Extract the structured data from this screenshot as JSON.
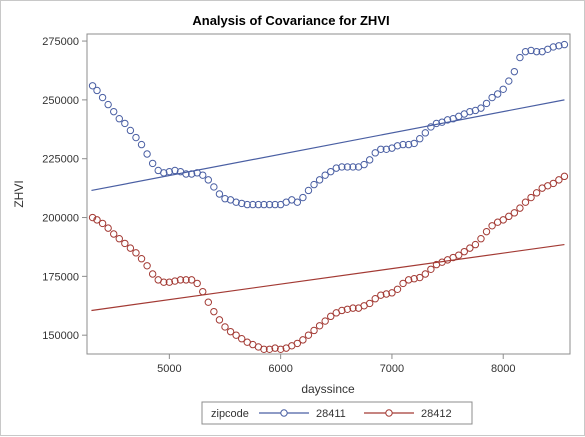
{
  "chart_data": {
    "type": "scatter",
    "title": "Analysis of Covariance for ZHVI",
    "xlabel": "dayssince",
    "ylabel": "ZHVI",
    "xlim": [
      4260,
      8600
    ],
    "ylim": [
      142000,
      278000
    ],
    "xticks": [
      5000,
      6000,
      7000,
      8000
    ],
    "yticks": [
      150000,
      175000,
      200000,
      225000,
      250000,
      275000
    ],
    "grid": false,
    "legend": {
      "title": "zipcode",
      "position": "bottom"
    },
    "series": [
      {
        "name": "28411",
        "color": "#4a5fa3",
        "fit": {
          "x": [
            4300,
            8550
          ],
          "y": [
            211500,
            250000
          ]
        },
        "points": [
          [
            4310,
            256000
          ],
          [
            4350,
            254000
          ],
          [
            4400,
            251000
          ],
          [
            4450,
            248000
          ],
          [
            4500,
            245000
          ],
          [
            4550,
            242000
          ],
          [
            4600,
            240000
          ],
          [
            4650,
            237000
          ],
          [
            4700,
            234000
          ],
          [
            4750,
            231000
          ],
          [
            4800,
            227000
          ],
          [
            4850,
            223000
          ],
          [
            4900,
            220000
          ],
          [
            4950,
            219000
          ],
          [
            5000,
            219500
          ],
          [
            5050,
            220000
          ],
          [
            5100,
            219500
          ],
          [
            5150,
            218500
          ],
          [
            5200,
            218500
          ],
          [
            5250,
            219000
          ],
          [
            5300,
            218000
          ],
          [
            5350,
            216000
          ],
          [
            5400,
            213000
          ],
          [
            5450,
            210000
          ],
          [
            5500,
            208000
          ],
          [
            5550,
            207500
          ],
          [
            5600,
            206500
          ],
          [
            5650,
            206000
          ],
          [
            5700,
            205500
          ],
          [
            5750,
            205500
          ],
          [
            5800,
            205500
          ],
          [
            5850,
            205500
          ],
          [
            5900,
            205500
          ],
          [
            5950,
            205500
          ],
          [
            6000,
            205500
          ],
          [
            6050,
            206500
          ],
          [
            6100,
            207500
          ],
          [
            6150,
            206500
          ],
          [
            6200,
            208500
          ],
          [
            6250,
            211500
          ],
          [
            6300,
            214000
          ],
          [
            6350,
            216000
          ],
          [
            6400,
            218000
          ],
          [
            6450,
            219500
          ],
          [
            6500,
            221000
          ],
          [
            6550,
            221500
          ],
          [
            6600,
            221500
          ],
          [
            6650,
            221500
          ],
          [
            6700,
            221500
          ],
          [
            6750,
            222500
          ],
          [
            6800,
            224500
          ],
          [
            6850,
            227500
          ],
          [
            6900,
            229000
          ],
          [
            6950,
            229000
          ],
          [
            7000,
            229500
          ],
          [
            7050,
            230500
          ],
          [
            7100,
            231000
          ],
          [
            7150,
            231000
          ],
          [
            7200,
            231500
          ],
          [
            7250,
            233500
          ],
          [
            7300,
            236000
          ],
          [
            7350,
            238500
          ],
          [
            7400,
            240000
          ],
          [
            7450,
            240500
          ],
          [
            7500,
            241500
          ],
          [
            7550,
            242000
          ],
          [
            7600,
            243000
          ],
          [
            7650,
            244000
          ],
          [
            7700,
            245000
          ],
          [
            7750,
            245500
          ],
          [
            7800,
            246500
          ],
          [
            7850,
            248500
          ],
          [
            7900,
            251000
          ],
          [
            7950,
            252500
          ],
          [
            8000,
            254500
          ],
          [
            8050,
            258000
          ],
          [
            8100,
            262000
          ],
          [
            8150,
            268000
          ],
          [
            8200,
            270500
          ],
          [
            8250,
            271000
          ],
          [
            8300,
            270500
          ],
          [
            8350,
            270500
          ],
          [
            8400,
            271500
          ],
          [
            8450,
            272500
          ],
          [
            8500,
            273000
          ],
          [
            8550,
            273500
          ]
        ]
      },
      {
        "name": "28412",
        "color": "#a33a34",
        "fit": {
          "x": [
            4300,
            8550
          ],
          "y": [
            160500,
            188500
          ]
        },
        "points": [
          [
            4310,
            200000
          ],
          [
            4350,
            199000
          ],
          [
            4400,
            197500
          ],
          [
            4450,
            195500
          ],
          [
            4500,
            193000
          ],
          [
            4550,
            191000
          ],
          [
            4600,
            189000
          ],
          [
            4650,
            187000
          ],
          [
            4700,
            185000
          ],
          [
            4750,
            182500
          ],
          [
            4800,
            179500
          ],
          [
            4850,
            176000
          ],
          [
            4900,
            173500
          ],
          [
            4950,
            172500
          ],
          [
            5000,
            172500
          ],
          [
            5050,
            173000
          ],
          [
            5100,
            173500
          ],
          [
            5150,
            173500
          ],
          [
            5200,
            173500
          ],
          [
            5250,
            172000
          ],
          [
            5300,
            168500
          ],
          [
            5350,
            164000
          ],
          [
            5400,
            160000
          ],
          [
            5450,
            156500
          ],
          [
            5500,
            153500
          ],
          [
            5550,
            151500
          ],
          [
            5600,
            150000
          ],
          [
            5650,
            148500
          ],
          [
            5700,
            147000
          ],
          [
            5750,
            146000
          ],
          [
            5800,
            145000
          ],
          [
            5850,
            144000
          ],
          [
            5900,
            144000
          ],
          [
            5950,
            144500
          ],
          [
            6000,
            144000
          ],
          [
            6050,
            144500
          ],
          [
            6100,
            145500
          ],
          [
            6150,
            146500
          ],
          [
            6200,
            148000
          ],
          [
            6250,
            150000
          ],
          [
            6300,
            152000
          ],
          [
            6350,
            154000
          ],
          [
            6400,
            156000
          ],
          [
            6450,
            158000
          ],
          [
            6500,
            159500
          ],
          [
            6550,
            160500
          ],
          [
            6600,
            161000
          ],
          [
            6650,
            161500
          ],
          [
            6700,
            161500
          ],
          [
            6750,
            162500
          ],
          [
            6800,
            163500
          ],
          [
            6850,
            165500
          ],
          [
            6900,
            167000
          ],
          [
            6950,
            167500
          ],
          [
            7000,
            168000
          ],
          [
            7050,
            169500
          ],
          [
            7100,
            172000
          ],
          [
            7150,
            173500
          ],
          [
            7200,
            174000
          ],
          [
            7250,
            174500
          ],
          [
            7300,
            176000
          ],
          [
            7350,
            178000
          ],
          [
            7400,
            180000
          ],
          [
            7450,
            181000
          ],
          [
            7500,
            182000
          ],
          [
            7550,
            183000
          ],
          [
            7600,
            184000
          ],
          [
            7650,
            185500
          ],
          [
            7700,
            187000
          ],
          [
            7750,
            188500
          ],
          [
            7800,
            191000
          ],
          [
            7850,
            194000
          ],
          [
            7900,
            196500
          ],
          [
            7950,
            198000
          ],
          [
            8000,
            199000
          ],
          [
            8050,
            200500
          ],
          [
            8100,
            202000
          ],
          [
            8150,
            204000
          ],
          [
            8200,
            206500
          ],
          [
            8250,
            208500
          ],
          [
            8300,
            210500
          ],
          [
            8350,
            212500
          ],
          [
            8400,
            213500
          ],
          [
            8450,
            214500
          ],
          [
            8500,
            216000
          ],
          [
            8550,
            217500
          ]
        ]
      }
    ]
  }
}
